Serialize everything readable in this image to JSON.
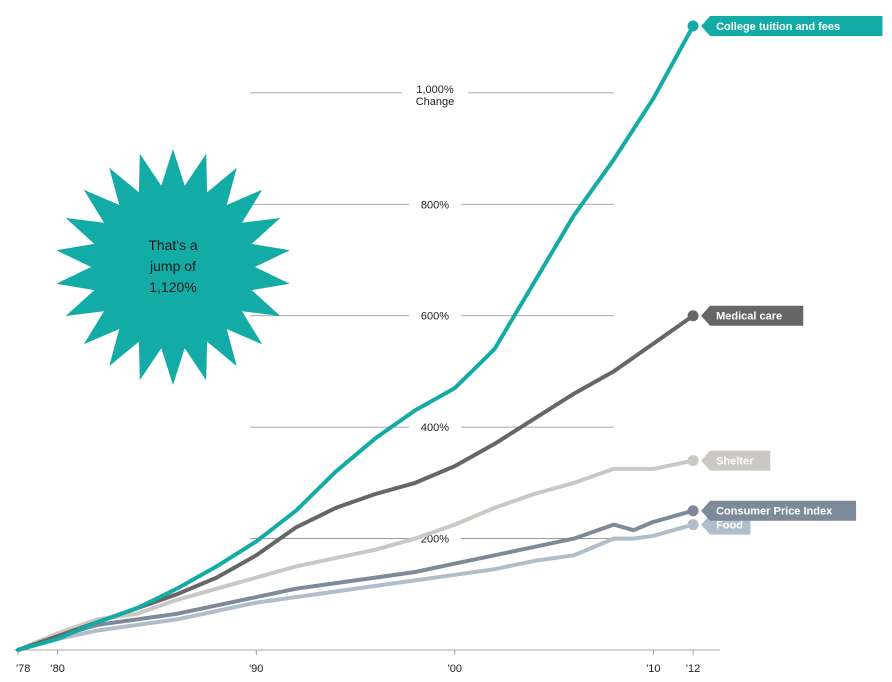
{
  "chart_data": {
    "type": "line",
    "yTicks": [
      {
        "value": 1000,
        "lines": [
          "1,000%",
          "Change"
        ]
      },
      {
        "value": 800,
        "lines": [
          "800%"
        ]
      },
      {
        "value": 600,
        "lines": [
          "600%"
        ]
      },
      {
        "value": 400,
        "lines": [
          "400%"
        ]
      },
      {
        "value": 200,
        "lines": [
          "200%"
        ]
      }
    ],
    "xTicks": [
      {
        "value": 1978,
        "label": "'78"
      },
      {
        "value": 1980,
        "label": "'80"
      },
      {
        "value": 1990,
        "label": "'90"
      },
      {
        "value": 2000,
        "label": "'00"
      },
      {
        "value": 2010,
        "label": "'10"
      },
      {
        "value": 2012,
        "label": "'12"
      }
    ],
    "xlim": [
      1978,
      2012.5
    ],
    "ylim": [
      0,
      1120
    ],
    "series": [
      {
        "name": "Food",
        "color": "#b0bdcb",
        "x": [
          1978,
          1980,
          1982,
          1984,
          1986,
          1988,
          1990,
          1992,
          1994,
          1996,
          1998,
          2000,
          2002,
          2004,
          2006,
          2008,
          2009,
          2010,
          2012
        ],
        "y": [
          0,
          20,
          35,
          45,
          55,
          70,
          85,
          95,
          105,
          115,
          125,
          135,
          145,
          160,
          170,
          200,
          200,
          205,
          225
        ]
      },
      {
        "name": "Consumer Price Index",
        "color": "#7d8a99",
        "x": [
          1978,
          1980,
          1982,
          1984,
          1986,
          1988,
          1990,
          1992,
          1994,
          1996,
          1998,
          2000,
          2002,
          2004,
          2006,
          2008,
          2009,
          2010,
          2012
        ],
        "y": [
          0,
          25,
          45,
          55,
          65,
          80,
          95,
          110,
          120,
          130,
          140,
          155,
          170,
          185,
          200,
          225,
          215,
          230,
          250
        ]
      },
      {
        "name": "Shelter",
        "color": "#cbc7c2",
        "x": [
          1978,
          1980,
          1982,
          1984,
          1986,
          1988,
          1990,
          1992,
          1994,
          1996,
          1998,
          2000,
          2002,
          2004,
          2006,
          2008,
          2010,
          2012
        ],
        "y": [
          0,
          30,
          55,
          65,
          90,
          110,
          130,
          150,
          165,
          180,
          200,
          225,
          255,
          280,
          300,
          325,
          325,
          340
        ]
      },
      {
        "name": "Medical care",
        "color": "#666666",
        "x": [
          1978,
          1980,
          1982,
          1984,
          1986,
          1988,
          1990,
          1992,
          1994,
          1996,
          1998,
          2000,
          2002,
          2004,
          2006,
          2008,
          2010,
          2012
        ],
        "y": [
          0,
          25,
          50,
          75,
          100,
          130,
          170,
          220,
          255,
          280,
          300,
          330,
          370,
          415,
          460,
          500,
          550,
          600
        ]
      },
      {
        "name": "College tuition and fees",
        "color": "#13aba6",
        "x": [
          1978,
          1980,
          1982,
          1984,
          1986,
          1988,
          1990,
          1992,
          1994,
          1996,
          1998,
          2000,
          2002,
          2004,
          2006,
          2008,
          2010,
          2012
        ],
        "y": [
          0,
          20,
          50,
          75,
          110,
          150,
          195,
          250,
          320,
          380,
          430,
          470,
          540,
          660,
          780,
          880,
          990,
          1120
        ]
      }
    ]
  },
  "annotation": {
    "lines": [
      "That's a",
      "jump of",
      "1,120%"
    ],
    "color": "#13aba6"
  }
}
